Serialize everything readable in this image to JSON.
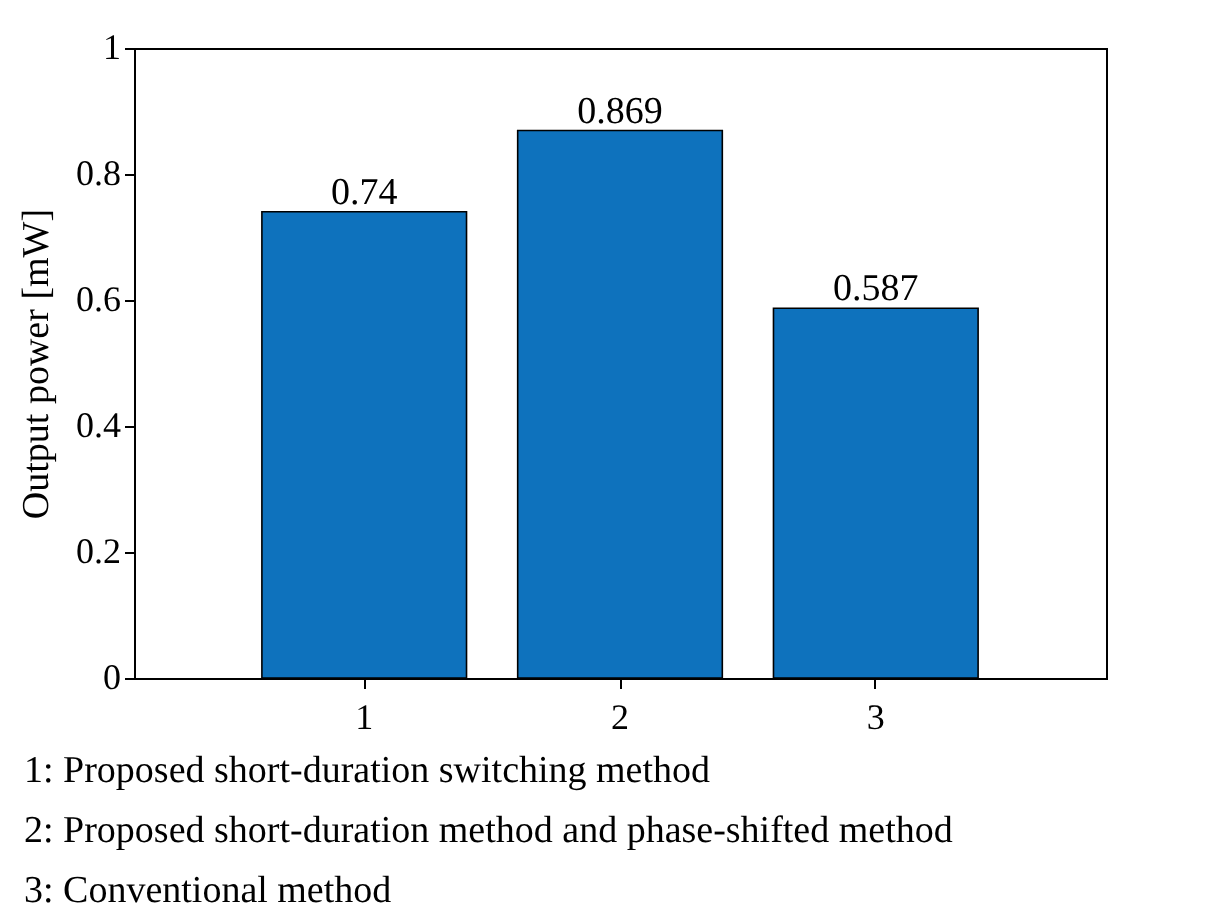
{
  "chart_data": {
    "type": "bar",
    "ylabel": "Output power [mW]",
    "categories": [
      "1",
      "2",
      "3"
    ],
    "values": [
      0.74,
      0.869,
      0.587
    ],
    "color": "#0e72bd",
    "ylim": [
      0,
      1
    ],
    "yticks": [
      0,
      0.2,
      0.4,
      0.6,
      0.8,
      1
    ],
    "data_labels": true,
    "grid": false,
    "annotations": [
      "1: Proposed short-duration switching method",
      "2: Proposed short-duration method and phase-shifted method",
      "3: Conventional method"
    ]
  }
}
